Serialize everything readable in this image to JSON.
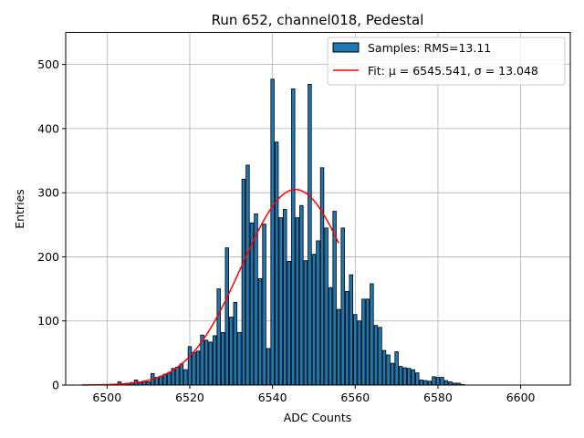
{
  "chart_data": {
    "type": "bar",
    "title": "Run 652, channel018, Pedestal",
    "xlabel": "ADC Counts",
    "ylabel": "Entries",
    "xlim": [
      6490,
      6612
    ],
    "ylim": [
      0,
      550
    ],
    "xticks": [
      6500,
      6520,
      6540,
      6560,
      6580,
      6600
    ],
    "yticks": [
      0,
      100,
      200,
      300,
      400,
      500
    ],
    "grid": true,
    "legend_position": "top-right",
    "bin_width": 0.8,
    "colors": {
      "bar_fill": "#1f77b4",
      "bar_edge": "#000000",
      "fit_line": "#ff0000",
      "grid": "#b0b0b0"
    },
    "histogram": {
      "name": "Samples: RMS=13.11",
      "bins": [
        [
          6503,
          5
        ],
        [
          6504,
          2
        ],
        [
          6505,
          3
        ],
        [
          6506,
          4
        ],
        [
          6507,
          8
        ],
        [
          6508,
          4
        ],
        [
          6509,
          6
        ],
        [
          6510,
          5
        ],
        [
          6511,
          18
        ],
        [
          6512,
          12
        ],
        [
          6513,
          14
        ],
        [
          6514,
          17
        ],
        [
          6515,
          19
        ],
        [
          6516,
          26
        ],
        [
          6517,
          28
        ],
        [
          6518,
          33
        ],
        [
          6519,
          24
        ],
        [
          6520,
          60
        ],
        [
          6521,
          51
        ],
        [
          6522,
          53
        ],
        [
          6523,
          78
        ],
        [
          6524,
          70
        ],
        [
          6525,
          67
        ],
        [
          6526,
          77
        ],
        [
          6527,
          150
        ],
        [
          6528,
          82
        ],
        [
          6529,
          214
        ],
        [
          6530,
          106
        ],
        [
          6531,
          129
        ],
        [
          6532,
          82
        ],
        [
          6533,
          321
        ],
        [
          6534,
          343
        ],
        [
          6535,
          253
        ],
        [
          6536,
          267
        ],
        [
          6537,
          166
        ],
        [
          6538,
          251
        ],
        [
          6539,
          57
        ],
        [
          6540,
          477
        ],
        [
          6541,
          379
        ],
        [
          6542,
          261
        ],
        [
          6543,
          274
        ],
        [
          6544,
          193
        ],
        [
          6545,
          462
        ],
        [
          6546,
          261
        ],
        [
          6547,
          280
        ],
        [
          6548,
          194
        ],
        [
          6549,
          469
        ],
        [
          6550,
          204
        ],
        [
          6551,
          225
        ],
        [
          6552,
          339
        ],
        [
          6553,
          245
        ],
        [
          6554,
          152
        ],
        [
          6555,
          271
        ],
        [
          6556,
          118
        ],
        [
          6557,
          245
        ],
        [
          6558,
          146
        ],
        [
          6559,
          172
        ],
        [
          6560,
          110
        ],
        [
          6561,
          100
        ],
        [
          6562,
          134
        ],
        [
          6563,
          134
        ],
        [
          6564,
          158
        ],
        [
          6565,
          93
        ],
        [
          6566,
          90
        ],
        [
          6567,
          54
        ],
        [
          6568,
          47
        ],
        [
          6569,
          34
        ],
        [
          6570,
          52
        ],
        [
          6571,
          29
        ],
        [
          6572,
          27
        ],
        [
          6573,
          26
        ],
        [
          6574,
          24
        ],
        [
          6575,
          19
        ],
        [
          6576,
          8
        ],
        [
          6577,
          7
        ],
        [
          6578,
          6
        ],
        [
          6579,
          13
        ],
        [
          6580,
          12
        ],
        [
          6581,
          12
        ],
        [
          6582,
          7
        ],
        [
          6583,
          5
        ],
        [
          6584,
          3
        ],
        [
          6585,
          3
        ],
        [
          6586,
          1
        ]
      ]
    },
    "fit": {
      "name": "Fit: μ = 6545.541, σ = 13.048",
      "mu": 6545.541,
      "sigma": 13.048,
      "amplitude": 305,
      "x_range": [
        6494,
        6556
      ]
    }
  }
}
